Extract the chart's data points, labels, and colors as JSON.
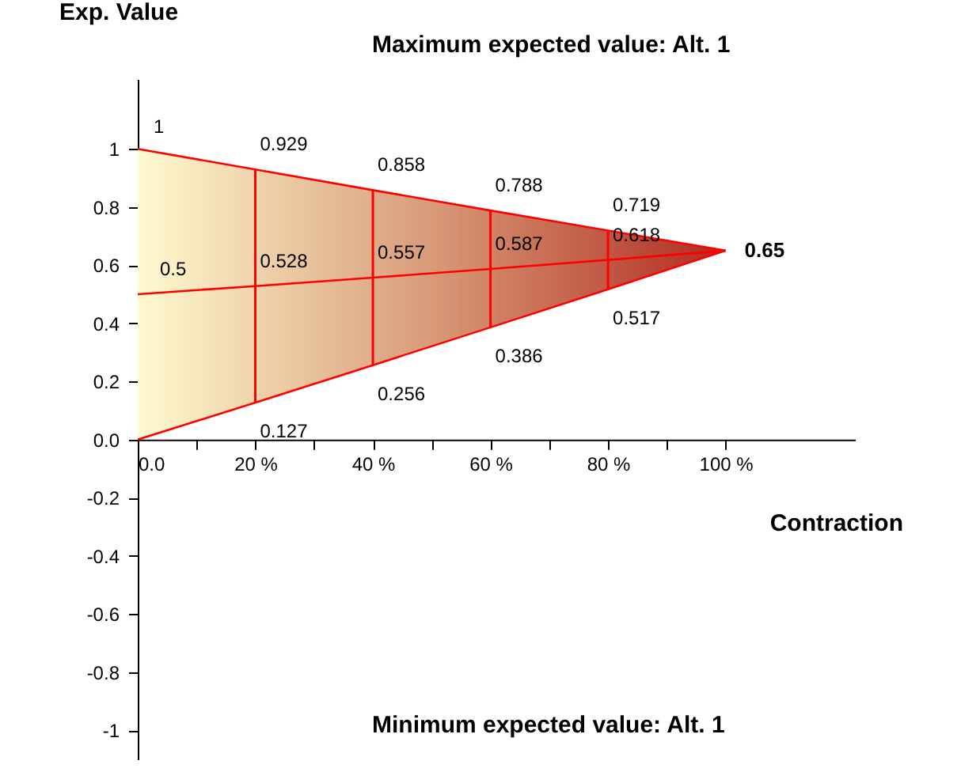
{
  "chart_data": {
    "type": "line",
    "title": "Maximum expected value: Alt. 1",
    "xlabel": "Contraction",
    "ylabel": "Exp. Value",
    "annotations": [
      "Minimum expected value: Alt. 1"
    ],
    "x": [
      0,
      20,
      40,
      60,
      80,
      100
    ],
    "series": [
      {
        "color": "#ff0000",
        "values": [
          1,
          0.929,
          0.858,
          0.788,
          0.719,
          0.65
        ],
        "value_labels": [
          "1",
          "0.929",
          "0.858",
          "0.788",
          "0.719",
          "0.65"
        ]
      },
      {
        "color": "#ff0000",
        "values": [
          0.5,
          0.528,
          0.557,
          0.587,
          0.618,
          0.65
        ],
        "value_labels": [
          "0.5",
          "0.528",
          "0.557",
          "0.587",
          "0.618",
          null
        ],
        "lower": [
          0,
          0.127,
          0.256,
          0.386,
          0.517,
          0.65
        ],
        "upper": [
          1,
          0.929,
          0.858,
          0.788,
          0.719,
          0.65
        ],
        "errors": [
          null,
          [
            0.127,
            0.929
          ],
          [
            0.256,
            0.858
          ],
          [
            0.386,
            0.788
          ],
          [
            0.517,
            0.719
          ],
          null
        ]
      },
      {
        "color": "#ff0000",
        "values": [
          0,
          0.127,
          0.256,
          0.386,
          0.517,
          0.65
        ],
        "value_labels": [
          null,
          "0.127",
          "0.256",
          "0.386",
          "0.517",
          null
        ]
      }
    ],
    "xlim": [
      0,
      122
    ],
    "xticks": [
      {
        "value": 0,
        "label": "0.0"
      },
      {
        "value": 10,
        "label": null
      },
      {
        "value": 20,
        "label": "20 %"
      },
      {
        "value": 30,
        "label": null
      },
      {
        "value": 40,
        "label": "40 %"
      },
      {
        "value": 50,
        "label": null
      },
      {
        "value": 60,
        "label": "60 %"
      },
      {
        "value": 70,
        "label": null
      },
      {
        "value": 80,
        "label": "80 %"
      },
      {
        "value": 90,
        "label": null
      },
      {
        "value": 100,
        "label": "100 %"
      }
    ],
    "ylim": [
      -1.1,
      1.24
    ],
    "yticks": [
      -1,
      -0.8,
      -0.6,
      -0.4,
      -0.2,
      {
        "value": 0,
        "label": "0.0"
      },
      0.2,
      0.4,
      0.6,
      0.8,
      1
    ],
    "line_style": "solid"
  }
}
